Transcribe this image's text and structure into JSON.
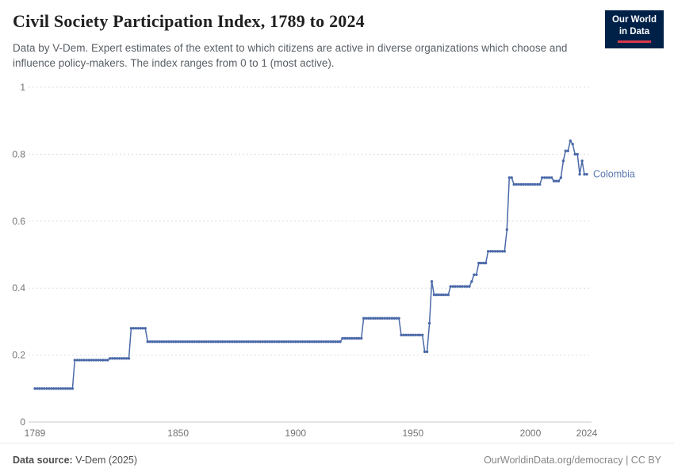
{
  "header": {
    "title": "Civil Society Participation Index, 1789 to 2024",
    "subtitle": "Data by V-Dem. Expert estimates of the extent to which citizens are active in diverse organizations which choose and influence policy-makers. The index ranges from 0 to 1 (most active).",
    "logo": {
      "line1": "Our World",
      "line2": "in Data"
    }
  },
  "footer": {
    "source_label": "Data source:",
    "source_value": " V-Dem (2025)",
    "link": "OurWorldinData.org/democracy",
    "separator": " | ",
    "license": "CC BY"
  },
  "colors": {
    "line": "#4a69a8",
    "series_label": "#5b79ae",
    "grid": "#dddddd",
    "zero_line": "#c9c9c9",
    "tick_label": "#737373"
  },
  "chart_data": {
    "type": "line",
    "title": "Civil Society Participation Index, 1789 to 2024",
    "xlabel": "",
    "ylabel": "",
    "xlim": [
      1789,
      2024
    ],
    "ylim": [
      0,
      1
    ],
    "x_ticks": [
      1789,
      1850,
      1900,
      1950,
      2000,
      2024
    ],
    "y_ticks": [
      0,
      0.2,
      0.4,
      0.6,
      0.8,
      1
    ],
    "grid": "horizontal-dashed",
    "legend_position": "end-of-line-label",
    "series": [
      {
        "name": "Colombia",
        "segments_note": "each entry is [startYear, endYear, indexValue]; value holds for every year in range",
        "segments": [
          [
            1789,
            1805,
            0.1
          ],
          [
            1806,
            1820,
            0.185
          ],
          [
            1821,
            1829,
            0.19
          ],
          [
            1830,
            1836,
            0.28
          ],
          [
            1837,
            1919,
            0.24
          ],
          [
            1920,
            1928,
            0.25
          ],
          [
            1929,
            1944,
            0.31
          ],
          [
            1945,
            1954,
            0.26
          ],
          [
            1955,
            1956,
            0.21
          ],
          [
            1957,
            1957,
            0.295
          ],
          [
            1958,
            1958,
            0.42
          ],
          [
            1959,
            1965,
            0.38
          ],
          [
            1966,
            1974,
            0.405
          ],
          [
            1975,
            1975,
            0.42
          ],
          [
            1976,
            1977,
            0.44
          ],
          [
            1978,
            1981,
            0.475
          ],
          [
            1982,
            1989,
            0.51
          ],
          [
            1990,
            1990,
            0.575
          ],
          [
            1991,
            1992,
            0.73
          ],
          [
            1993,
            2004,
            0.71
          ],
          [
            2005,
            2009,
            0.73
          ],
          [
            2010,
            2012,
            0.72
          ],
          [
            2013,
            2013,
            0.73
          ],
          [
            2014,
            2014,
            0.78
          ],
          [
            2015,
            2016,
            0.81
          ],
          [
            2017,
            2017,
            0.84
          ],
          [
            2018,
            2018,
            0.83
          ],
          [
            2019,
            2020,
            0.8
          ],
          [
            2021,
            2021,
            0.74
          ],
          [
            2022,
            2022,
            0.78
          ],
          [
            2023,
            2024,
            0.74
          ]
        ]
      }
    ]
  }
}
